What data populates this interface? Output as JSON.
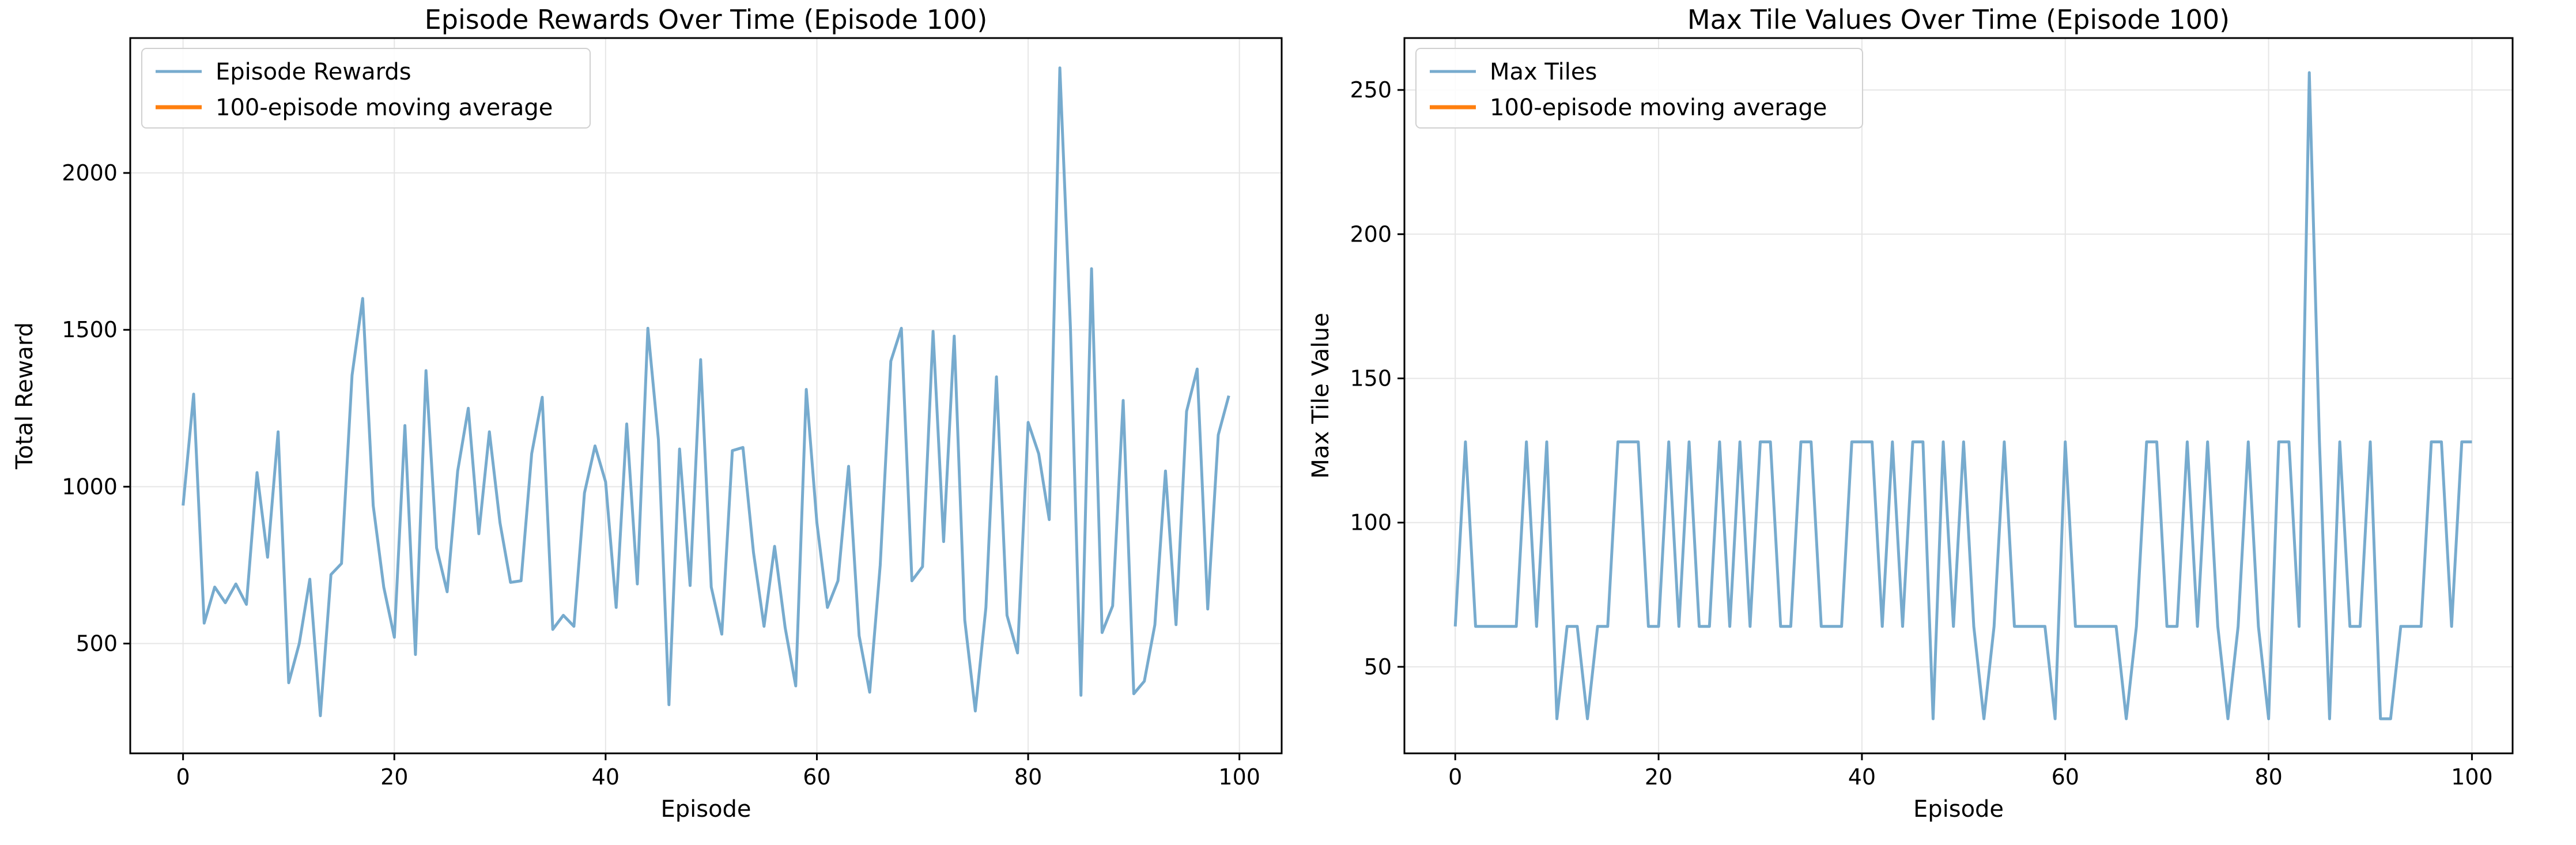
{
  "chart_data": [
    {
      "type": "line",
      "title": "Episode Rewards Over Time (Episode 100)",
      "xlabel": "Episode",
      "ylabel": "Total Reward",
      "xlim": [
        -5,
        104
      ],
      "ylim": [
        150,
        2430
      ],
      "xticks": [
        0,
        20,
        40,
        60,
        80,
        100
      ],
      "yticks": [
        500,
        1000,
        1500,
        2000
      ],
      "grid": true,
      "legend": "top-left",
      "series": [
        {
          "name": "Episode Rewards",
          "color": "#77abce",
          "x_start": 0,
          "values": [
            940,
            1295,
            565,
            680,
            630,
            690,
            625,
            1045,
            775,
            1175,
            375,
            500,
            705,
            270,
            720,
            755,
            1355,
            1600,
            940,
            680,
            520,
            1195,
            465,
            1370,
            805,
            665,
            1050,
            1250,
            850,
            1175,
            885,
            695,
            700,
            1105,
            1285,
            545,
            590,
            555,
            980,
            1130,
            1015,
            615,
            1200,
            690,
            1505,
            1150,
            305,
            1120,
            685,
            1405,
            680,
            530,
            1115,
            1125,
            790,
            555,
            810,
            550,
            365,
            1310,
            885,
            615,
            700,
            1065,
            525,
            345,
            750,
            1400,
            1505,
            700,
            745,
            1495,
            825,
            1480,
            575,
            285,
            615,
            1350,
            590,
            470,
            1205,
            1105,
            895,
            2335,
            1510,
            335,
            1695,
            535,
            620,
            1275,
            340,
            380,
            560,
            1050,
            560,
            1240,
            1375,
            610,
            1165,
            1290
          ]
        },
        {
          "name": "100-episode moving average",
          "color": "#ff7f0e",
          "values": []
        }
      ]
    },
    {
      "type": "line",
      "title": "Max Tile Values Over Time (Episode 100)",
      "xlabel": "Episode",
      "ylabel": "Max Tile Value",
      "xlim": [
        -5,
        104
      ],
      "ylim": [
        20,
        268
      ],
      "xticks": [
        0,
        20,
        40,
        60,
        80,
        100
      ],
      "yticks": [
        50,
        100,
        150,
        200,
        250
      ],
      "grid": true,
      "legend": "top-left",
      "series": [
        {
          "name": "Max Tiles",
          "color": "#77abce",
          "x_start": 0,
          "values": [
            64,
            128,
            64,
            64,
            64,
            64,
            64,
            128,
            64,
            128,
            32,
            64,
            64,
            32,
            64,
            64,
            128,
            128,
            128,
            64,
            64,
            128,
            64,
            128,
            64,
            64,
            128,
            64,
            128,
            64,
            128,
            128,
            64,
            64,
            128,
            128,
            64,
            64,
            64,
            128,
            128,
            128,
            64,
            128,
            64,
            128,
            128,
            32,
            128,
            64,
            128,
            64,
            32,
            64,
            128,
            64,
            64,
            64,
            64,
            32,
            128,
            64,
            64,
            64,
            64,
            64,
            32,
            64,
            128,
            128,
            64,
            64,
            128,
            64,
            128,
            64,
            32,
            64,
            128,
            64,
            32,
            128,
            128,
            64,
            256,
            128,
            32,
            128,
            64,
            64,
            128,
            32,
            32,
            64,
            64,
            64,
            128,
            128,
            64,
            128,
            128
          ]
        },
        {
          "name": "100-episode moving average",
          "color": "#ff7f0e",
          "values": []
        }
      ]
    }
  ]
}
